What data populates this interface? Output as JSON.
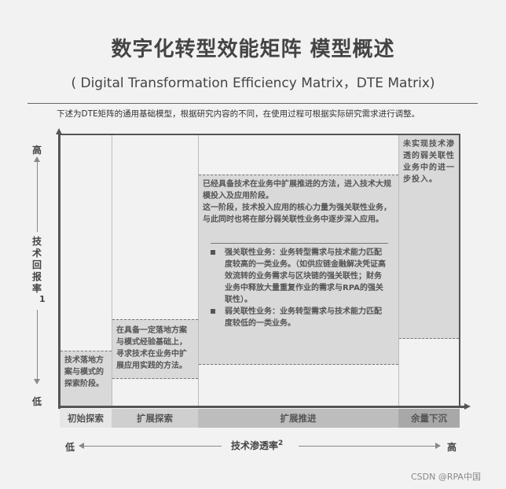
{
  "header": {
    "title": "数字化转型效能矩阵 模型概述",
    "subtitle": "( Digital Transformation Efficiency Matrix，DTE Matrix)",
    "note": "下述为DTE矩阵的通用基础模型，根据研究内容的不同，在使用过程可根据实际研究需求进行调整。"
  },
  "y_axis": {
    "high": "高",
    "label": "技术回报率",
    "superscript": "1",
    "low": "低"
  },
  "x_axis": {
    "low": "低",
    "label": "技术渗透率",
    "superscript": "2",
    "high": "高"
  },
  "phases": [
    {
      "label": "初始探索",
      "color": "#e6e6e6",
      "description": "技术落地方案与模式的探索阶段。"
    },
    {
      "label": "扩展探索",
      "color": "#cfcfcf",
      "description": "在具备一定落地方案与模式经验基础上，寻求技术在业务中扩展应用实践的方法。"
    },
    {
      "label": "扩展推进",
      "color": "#bdbdbd",
      "description": [
        "已经具备技术在业务中扩展推进的方法，进入技术大规模投入及应用阶段。",
        "这一阶段，技术投入应用的核心力量为强关联性业务，与此同时也将在部分弱关联性业务中逐步深入应用。"
      ],
      "bullets": [
        "强关联性业务：业务转型需求与技术能力匹配度较高的一类业务。（如供应链金融解决凭证高效流转的业务需求与区块链的强关联性；财务业务中释放大量重复作业的需求与RPA的强关联性）。",
        "弱关联性业务：业务转型需求与技术能力匹配度较低的一类业务。"
      ]
    },
    {
      "label": "余量下沉",
      "color": "#a8a8a8",
      "description": "未实现技术渗透的弱关联性业务中的进一步投入。"
    }
  ],
  "watermark": "CSDN @RPA中国"
}
